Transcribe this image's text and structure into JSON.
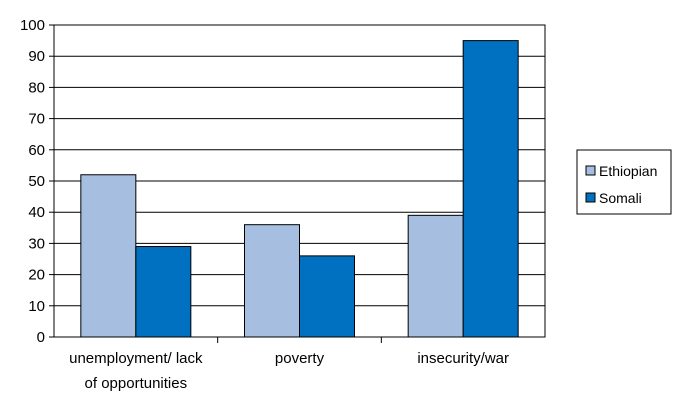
{
  "chart_data": {
    "type": "bar",
    "categories": [
      [
        "unemployment/ lack",
        "of opportunities"
      ],
      [
        "poverty"
      ],
      [
        "insecurity/war"
      ]
    ],
    "series": [
      {
        "name": "Ethiopian",
        "color": "#a6bfe0",
        "values": [
          52,
          36,
          39
        ]
      },
      {
        "name": "Somali",
        "color": "#0070c0",
        "values": [
          29,
          26,
          95
        ]
      }
    ],
    "ylim": [
      0,
      100
    ],
    "yticks": [
      0,
      10,
      20,
      30,
      40,
      50,
      60,
      70,
      80,
      90,
      100
    ],
    "grid": true,
    "legend_position": "right",
    "title": "",
    "xlabel": "",
    "ylabel": ""
  }
}
